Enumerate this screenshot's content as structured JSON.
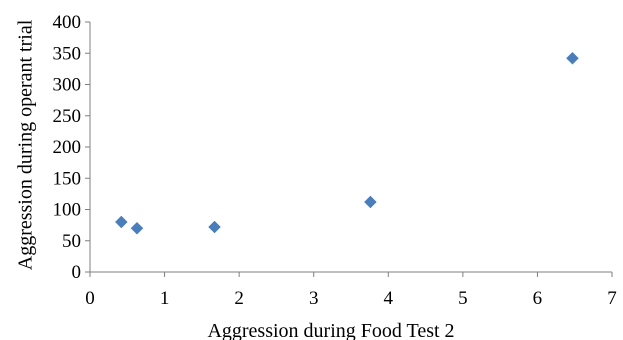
{
  "chart_data": {
    "type": "scatter",
    "title": "",
    "xlabel": "Aggression during Food Test 2",
    "ylabel": "Aggression during operant trial",
    "xlim": [
      0,
      7
    ],
    "ylim": [
      0,
      400
    ],
    "x_ticks": [
      "0",
      "1",
      "2",
      "3",
      "4",
      "5",
      "6",
      "7"
    ],
    "y_ticks": [
      "0",
      "50",
      "100",
      "150",
      "200",
      "250",
      "300",
      "350",
      "400"
    ],
    "grid": false,
    "legend": "none",
    "marker": "diamond",
    "marker_color": "#4a7ebb",
    "series": [
      {
        "points": [
          {
            "x": 0.42,
            "y": 80
          },
          {
            "x": 0.63,
            "y": 70
          },
          {
            "x": 1.67,
            "y": 72
          },
          {
            "x": 3.76,
            "y": 112
          },
          {
            "x": 6.47,
            "y": 342
          }
        ]
      }
    ]
  }
}
